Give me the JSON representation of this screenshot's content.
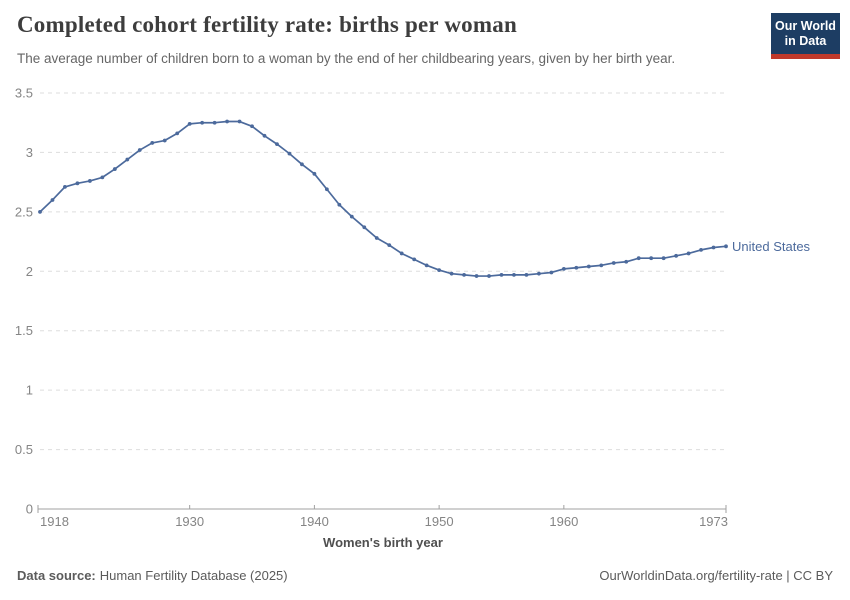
{
  "header": {
    "title": "Completed cohort fertility rate: births per woman",
    "subtitle": "The average number of children born to a woman by the end of her childbearing years, given by her birth year.",
    "logo": {
      "line1": "Our World",
      "line2": "in Data"
    }
  },
  "chart_data": {
    "type": "line",
    "title": "Completed cohort fertility rate: births per woman",
    "xlabel": "Women's birth year",
    "ylabel": "",
    "xlim": [
      1918,
      1973
    ],
    "ylim": [
      0,
      3.5
    ],
    "xticks": [
      1918,
      1930,
      1940,
      1950,
      1960,
      1973
    ],
    "yticks": [
      0,
      0.5,
      1,
      1.5,
      2,
      2.5,
      3,
      3.5
    ],
    "grid": "horizontal-dashed",
    "legend_position": "end-of-line",
    "x": [
      1918,
      1919,
      1920,
      1921,
      1922,
      1923,
      1924,
      1925,
      1926,
      1927,
      1928,
      1929,
      1930,
      1931,
      1932,
      1933,
      1934,
      1935,
      1936,
      1937,
      1938,
      1939,
      1940,
      1941,
      1942,
      1943,
      1944,
      1945,
      1946,
      1947,
      1948,
      1949,
      1950,
      1951,
      1952,
      1953,
      1954,
      1955,
      1956,
      1957,
      1958,
      1959,
      1960,
      1961,
      1962,
      1963,
      1964,
      1965,
      1966,
      1967,
      1968,
      1969,
      1970,
      1971,
      1972,
      1973
    ],
    "series": [
      {
        "name": "United States",
        "color": "#4C6A9C",
        "values": [
          2.5,
          2.6,
          2.71,
          2.74,
          2.76,
          2.79,
          2.86,
          2.94,
          3.02,
          3.08,
          3.1,
          3.16,
          3.24,
          3.25,
          3.25,
          3.26,
          3.26,
          3.22,
          3.14,
          3.07,
          2.99,
          2.9,
          2.82,
          2.69,
          2.56,
          2.46,
          2.37,
          2.28,
          2.22,
          2.15,
          2.1,
          2.05,
          2.01,
          1.98,
          1.97,
          1.96,
          1.96,
          1.97,
          1.97,
          1.97,
          1.98,
          1.99,
          2.02,
          2.03,
          2.04,
          2.05,
          2.07,
          2.08,
          2.11,
          2.11,
          2.11,
          2.13,
          2.15,
          2.18,
          2.2,
          2.21
        ]
      }
    ]
  },
  "footer": {
    "datasource_label": "Data source:",
    "datasource_value": "Human Fertility Database (2025)",
    "attribution": "OurWorldinData.org/fertility-rate | CC BY"
  },
  "colors": {
    "line": "#4C6A9C",
    "grid": "#dddddd",
    "axis": "#a0a0a0",
    "tick_text": "#858585",
    "axis_title_text": "#4f4f4f",
    "logo_bg": "#1d3d63",
    "logo_bar": "#c0392b"
  }
}
